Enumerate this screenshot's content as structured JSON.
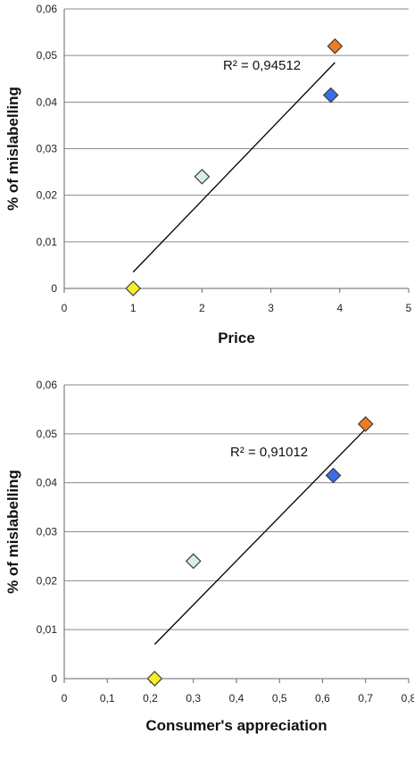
{
  "chart_data": [
    {
      "type": "scatter",
      "title": "",
      "xlabel": "Price",
      "ylabel": "% of mislabelling",
      "xlim": [
        0,
        5
      ],
      "ylim": [
        0,
        0.06
      ],
      "x_ticks": [
        0,
        1,
        2,
        3,
        4,
        5
      ],
      "x_tick_labels": [
        "0",
        "1",
        "2",
        "3",
        "4",
        "5"
      ],
      "y_ticks": [
        0,
        0.01,
        0.02,
        0.03,
        0.04,
        0.05,
        0.06
      ],
      "y_tick_labels": [
        "0",
        "0,01",
        "0,02",
        "0,03",
        "0,04",
        "0,05",
        "0,06"
      ],
      "grid": "horizontal",
      "legend": "none",
      "points": [
        {
          "x": 1,
          "y": 0,
          "color": "#f7ee2a"
        },
        {
          "x": 2,
          "y": 0.024,
          "color": "#d6f1df"
        },
        {
          "x": 3.87,
          "y": 0.0415,
          "color": "#3a6ee8"
        },
        {
          "x": 3.93,
          "y": 0.052,
          "color": "#f07c22"
        }
      ],
      "trendline": {
        "x": [
          1,
          3.93
        ],
        "y": [
          0.0035,
          0.0485
        ]
      },
      "annotation": "R² = 0,94512"
    },
    {
      "type": "scatter",
      "title": "",
      "xlabel": "Consumer's appreciation",
      "ylabel": "% of mislabelling",
      "xlim": [
        0,
        0.8
      ],
      "ylim": [
        0,
        0.06
      ],
      "x_ticks": [
        0,
        0.1,
        0.2,
        0.3,
        0.4,
        0.5,
        0.6,
        0.7,
        0.8
      ],
      "x_tick_labels": [
        "0",
        "0,1",
        "0,2",
        "0,3",
        "0,4",
        "0,5",
        "0,6",
        "0,7",
        "0,8"
      ],
      "y_ticks": [
        0,
        0.01,
        0.02,
        0.03,
        0.04,
        0.05,
        0.06
      ],
      "y_tick_labels": [
        "0",
        "0,01",
        "0,02",
        "0,03",
        "0,04",
        "0,05",
        "0,06"
      ],
      "grid": "horizontal",
      "legend": "none",
      "points": [
        {
          "x": 0.21,
          "y": 0,
          "color": "#f7ee2a"
        },
        {
          "x": 0.3,
          "y": 0.024,
          "color": "#d6f1df"
        },
        {
          "x": 0.625,
          "y": 0.0415,
          "color": "#3a6ee8"
        },
        {
          "x": 0.7,
          "y": 0.052,
          "color": "#f07c22"
        }
      ],
      "trendline": {
        "x": [
          0.21,
          0.7
        ],
        "y": [
          0.007,
          0.051
        ]
      },
      "annotation": "R² = 0,91012"
    }
  ]
}
